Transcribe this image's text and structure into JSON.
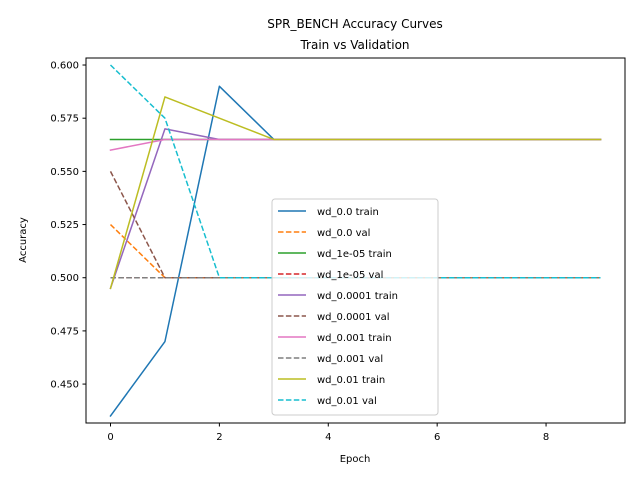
{
  "chart_data": {
    "type": "line",
    "title": "SPR_BENCH Accuracy Curves",
    "subtitle": "Train vs Validation",
    "xlabel": "Epoch",
    "ylabel": "Accuracy",
    "xlim": [
      -0.45,
      9.45
    ],
    "ylim": [
      0.4317,
      0.6033
    ],
    "xticks": [
      0,
      2,
      4,
      6,
      8
    ],
    "yticks": [
      0.45,
      0.475,
      0.5,
      0.525,
      0.55,
      0.575,
      0.6
    ],
    "ytick_labels": [
      "0.450",
      "0.475",
      "0.500",
      "0.525",
      "0.550",
      "0.575",
      "0.600"
    ],
    "grid": false,
    "legend_position": "center-bottom",
    "x": [
      0,
      1,
      2,
      3,
      4,
      5,
      6,
      7,
      8,
      9
    ],
    "series": [
      {
        "name": "wd_0.0 train",
        "color": "#1f77b4",
        "dash": "solid",
        "values": [
          0.435,
          0.47,
          0.59,
          0.565,
          0.565,
          0.565,
          0.565,
          0.565,
          0.565,
          0.565
        ]
      },
      {
        "name": "wd_0.0 val",
        "color": "#ff7f0e",
        "dash": "dashed",
        "values": [
          0.525,
          0.5,
          0.5,
          0.5,
          0.5,
          0.5,
          0.5,
          0.5,
          0.5,
          0.5
        ]
      },
      {
        "name": "wd_1e-05 train",
        "color": "#2ca02c",
        "dash": "solid",
        "values": [
          0.565,
          0.565,
          0.565,
          0.565,
          0.565,
          0.565,
          0.565,
          0.565,
          0.565,
          0.565
        ]
      },
      {
        "name": "wd_1e-05 val",
        "color": "#d62728",
        "dash": "dashed",
        "values": [
          0.5,
          0.5,
          0.5,
          0.5,
          0.5,
          0.5,
          0.5,
          0.5,
          0.5,
          0.5
        ]
      },
      {
        "name": "wd_0.0001 train",
        "color": "#9467bd",
        "dash": "solid",
        "values": [
          0.495,
          0.57,
          0.565,
          0.565,
          0.565,
          0.565,
          0.565,
          0.565,
          0.565,
          0.565
        ]
      },
      {
        "name": "wd_0.0001 val",
        "color": "#8c564b",
        "dash": "dashed",
        "values": [
          0.55,
          0.5,
          0.5,
          0.5,
          0.5,
          0.5,
          0.5,
          0.5,
          0.5,
          0.5
        ]
      },
      {
        "name": "wd_0.001 train",
        "color": "#e377c2",
        "dash": "solid",
        "values": [
          0.56,
          0.565,
          0.565,
          0.565,
          0.565,
          0.565,
          0.565,
          0.565,
          0.565,
          0.565
        ]
      },
      {
        "name": "wd_0.001 val",
        "color": "#7f7f7f",
        "dash": "dashed",
        "values": [
          0.5,
          0.5,
          0.5,
          0.5,
          0.5,
          0.5,
          0.5,
          0.5,
          0.5,
          0.5
        ]
      },
      {
        "name": "wd_0.01 train",
        "color": "#bcbd22",
        "dash": "solid",
        "values": [
          0.495,
          0.585,
          0.575,
          0.565,
          0.565,
          0.565,
          0.565,
          0.565,
          0.565,
          0.565
        ]
      },
      {
        "name": "wd_0.01 val",
        "color": "#17becf",
        "dash": "dashed",
        "values": [
          0.6,
          0.575,
          0.5,
          0.5,
          0.5,
          0.5,
          0.5,
          0.5,
          0.5,
          0.5
        ]
      }
    ]
  }
}
